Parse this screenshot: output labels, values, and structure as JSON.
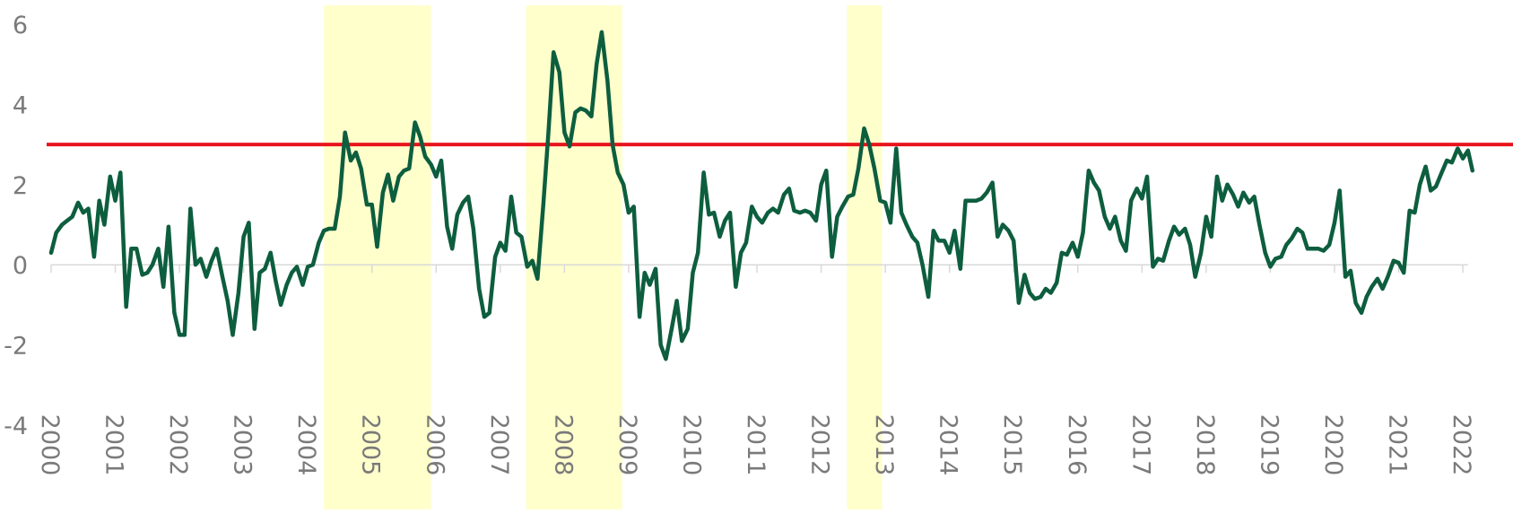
{
  "chart_data": {
    "type": "line",
    "title": "",
    "xlabel": "",
    "ylabel": "",
    "xlim": [
      2000,
      2022.083
    ],
    "ylim": [
      -4,
      6
    ],
    "y_ticks": [
      "-4",
      "-2",
      "0",
      "2",
      "4",
      "6"
    ],
    "x_ticks": [
      "2000",
      "2001",
      "2002",
      "2003",
      "2004",
      "2005",
      "2006",
      "2007",
      "2008",
      "2009",
      "2010",
      "2011",
      "2012",
      "2013",
      "2014",
      "2015",
      "2016",
      "2017",
      "2018",
      "2019",
      "2020",
      "2021",
      "2022"
    ],
    "grid": false,
    "legend": "none",
    "colors": {
      "series": "#0d5e3e",
      "threshold": "#e8141c",
      "shade": "#ffffcc",
      "zero_line": "#d9d9d9"
    },
    "threshold": 3,
    "shaded_periods": [
      [
        2004.25,
        2005.92
      ],
      [
        2007.4,
        2008.9
      ],
      [
        2012.4,
        2012.95
      ]
    ],
    "series": [
      {
        "points": [
          [
            2000.0,
            0.3
          ],
          [
            2000.08,
            0.8
          ],
          [
            2000.17,
            1.0
          ],
          [
            2000.25,
            1.1
          ],
          [
            2000.33,
            1.2
          ],
          [
            2000.42,
            1.55
          ],
          [
            2000.5,
            1.3
          ],
          [
            2000.58,
            1.4
          ],
          [
            2000.67,
            0.2
          ],
          [
            2000.75,
            1.6
          ],
          [
            2000.83,
            1.0
          ],
          [
            2000.92,
            2.2
          ],
          [
            2001.0,
            1.6
          ],
          [
            2001.08,
            2.3
          ],
          [
            2001.17,
            -1.05
          ],
          [
            2001.25,
            0.4
          ],
          [
            2001.33,
            0.4
          ],
          [
            2001.42,
            -0.25
          ],
          [
            2001.5,
            -0.2
          ],
          [
            2001.58,
            0.0
          ],
          [
            2001.67,
            0.4
          ],
          [
            2001.75,
            -0.55
          ],
          [
            2001.83,
            0.95
          ],
          [
            2001.92,
            -1.2
          ],
          [
            2002.0,
            -1.75
          ],
          [
            2002.08,
            -1.75
          ],
          [
            2002.17,
            1.4
          ],
          [
            2002.25,
            0.0
          ],
          [
            2002.33,
            0.15
          ],
          [
            2002.42,
            -0.3
          ],
          [
            2002.5,
            0.1
          ],
          [
            2002.58,
            0.4
          ],
          [
            2002.67,
            -0.3
          ],
          [
            2002.75,
            -0.9
          ],
          [
            2002.83,
            -1.75
          ],
          [
            2002.92,
            -0.7
          ],
          [
            2003.0,
            0.7
          ],
          [
            2003.08,
            1.05
          ],
          [
            2003.17,
            -1.6
          ],
          [
            2003.25,
            -0.2
          ],
          [
            2003.33,
            -0.1
          ],
          [
            2003.42,
            0.3
          ],
          [
            2003.5,
            -0.4
          ],
          [
            2003.58,
            -1.0
          ],
          [
            2003.67,
            -0.5
          ],
          [
            2003.75,
            -0.2
          ],
          [
            2003.83,
            -0.05
          ],
          [
            2003.92,
            -0.5
          ],
          [
            2004.0,
            -0.05
          ],
          [
            2004.08,
            0.0
          ],
          [
            2004.17,
            0.55
          ],
          [
            2004.25,
            0.85
          ],
          [
            2004.33,
            0.9
          ],
          [
            2004.42,
            0.9
          ],
          [
            2004.5,
            1.7
          ],
          [
            2004.58,
            3.3
          ],
          [
            2004.67,
            2.6
          ],
          [
            2004.75,
            2.8
          ],
          [
            2004.83,
            2.4
          ],
          [
            2004.92,
            1.5
          ],
          [
            2005.0,
            1.5
          ],
          [
            2005.08,
            0.45
          ],
          [
            2005.17,
            1.8
          ],
          [
            2005.25,
            2.25
          ],
          [
            2005.33,
            1.6
          ],
          [
            2005.42,
            2.2
          ],
          [
            2005.5,
            2.35
          ],
          [
            2005.58,
            2.4
          ],
          [
            2005.67,
            3.55
          ],
          [
            2005.75,
            3.2
          ],
          [
            2005.83,
            2.7
          ],
          [
            2005.92,
            2.5
          ],
          [
            2006.0,
            2.2
          ],
          [
            2006.08,
            2.6
          ],
          [
            2006.17,
            0.95
          ],
          [
            2006.25,
            0.4
          ],
          [
            2006.33,
            1.25
          ],
          [
            2006.42,
            1.55
          ],
          [
            2006.5,
            1.7
          ],
          [
            2006.58,
            0.9
          ],
          [
            2006.67,
            -0.6
          ],
          [
            2006.75,
            -1.3
          ],
          [
            2006.83,
            -1.2
          ],
          [
            2006.92,
            0.2
          ],
          [
            2007.0,
            0.55
          ],
          [
            2007.08,
            0.35
          ],
          [
            2007.17,
            1.7
          ],
          [
            2007.25,
            0.8
          ],
          [
            2007.33,
            0.7
          ],
          [
            2007.42,
            -0.05
          ],
          [
            2007.5,
            0.1
          ],
          [
            2007.58,
            -0.35
          ],
          [
            2007.67,
            1.5
          ],
          [
            2007.75,
            3.3
          ],
          [
            2007.83,
            5.3
          ],
          [
            2007.92,
            4.8
          ],
          [
            2008.0,
            3.3
          ],
          [
            2008.08,
            2.95
          ],
          [
            2008.17,
            3.8
          ],
          [
            2008.25,
            3.9
          ],
          [
            2008.33,
            3.85
          ],
          [
            2008.42,
            3.7
          ],
          [
            2008.5,
            5.0
          ],
          [
            2008.58,
            5.8
          ],
          [
            2008.67,
            4.6
          ],
          [
            2008.75,
            3.0
          ],
          [
            2008.83,
            2.3
          ],
          [
            2008.92,
            2.0
          ],
          [
            2009.0,
            1.3
          ],
          [
            2009.08,
            1.45
          ],
          [
            2009.17,
            -1.3
          ],
          [
            2009.25,
            -0.2
          ],
          [
            2009.33,
            -0.5
          ],
          [
            2009.42,
            -0.1
          ],
          [
            2009.5,
            -2.0
          ],
          [
            2009.58,
            -2.35
          ],
          [
            2009.67,
            -1.6
          ],
          [
            2009.75,
            -0.9
          ],
          [
            2009.83,
            -1.9
          ],
          [
            2009.92,
            -1.6
          ],
          [
            2010.0,
            -0.2
          ],
          [
            2010.08,
            0.3
          ],
          [
            2010.17,
            2.3
          ],
          [
            2010.25,
            1.25
          ],
          [
            2010.33,
            1.3
          ],
          [
            2010.42,
            0.7
          ],
          [
            2010.5,
            1.1
          ],
          [
            2010.58,
            1.3
          ],
          [
            2010.67,
            -0.55
          ],
          [
            2010.75,
            0.3
          ],
          [
            2010.83,
            0.55
          ],
          [
            2010.92,
            1.45
          ],
          [
            2011.0,
            1.2
          ],
          [
            2011.08,
            1.05
          ],
          [
            2011.17,
            1.3
          ],
          [
            2011.25,
            1.4
          ],
          [
            2011.33,
            1.3
          ],
          [
            2011.42,
            1.75
          ],
          [
            2011.5,
            1.9
          ],
          [
            2011.58,
            1.35
          ],
          [
            2011.67,
            1.3
          ],
          [
            2011.75,
            1.35
          ],
          [
            2011.83,
            1.3
          ],
          [
            2011.92,
            1.1
          ],
          [
            2012.0,
            2.0
          ],
          [
            2012.08,
            2.35
          ],
          [
            2012.17,
            0.2
          ],
          [
            2012.25,
            1.2
          ],
          [
            2012.33,
            1.45
          ],
          [
            2012.42,
            1.7
          ],
          [
            2012.5,
            1.75
          ],
          [
            2012.58,
            2.4
          ],
          [
            2012.67,
            3.4
          ],
          [
            2012.75,
            3.0
          ],
          [
            2012.83,
            2.4
          ],
          [
            2012.92,
            1.6
          ],
          [
            2013.0,
            1.55
          ],
          [
            2013.08,
            1.05
          ],
          [
            2013.17,
            2.9
          ],
          [
            2013.25,
            1.3
          ],
          [
            2013.33,
            1.0
          ],
          [
            2013.42,
            0.7
          ],
          [
            2013.5,
            0.55
          ],
          [
            2013.58,
            0.0
          ],
          [
            2013.67,
            -0.8
          ],
          [
            2013.75,
            0.85
          ],
          [
            2013.83,
            0.6
          ],
          [
            2013.92,
            0.6
          ],
          [
            2014.0,
            0.3
          ],
          [
            2014.08,
            0.85
          ],
          [
            2014.17,
            -0.1
          ],
          [
            2014.25,
            1.6
          ],
          [
            2014.33,
            1.6
          ],
          [
            2014.42,
            1.6
          ],
          [
            2014.5,
            1.65
          ],
          [
            2014.58,
            1.8
          ],
          [
            2014.67,
            2.05
          ],
          [
            2014.75,
            0.7
          ],
          [
            2014.83,
            1.0
          ],
          [
            2014.92,
            0.85
          ],
          [
            2015.0,
            0.6
          ],
          [
            2015.08,
            -0.95
          ],
          [
            2015.17,
            -0.25
          ],
          [
            2015.25,
            -0.7
          ],
          [
            2015.33,
            -0.85
          ],
          [
            2015.42,
            -0.8
          ],
          [
            2015.5,
            -0.6
          ],
          [
            2015.58,
            -0.7
          ],
          [
            2015.67,
            -0.45
          ],
          [
            2015.75,
            0.3
          ],
          [
            2015.83,
            0.25
          ],
          [
            2015.92,
            0.55
          ],
          [
            2016.0,
            0.2
          ],
          [
            2016.08,
            0.8
          ],
          [
            2016.17,
            2.35
          ],
          [
            2016.25,
            2.05
          ],
          [
            2016.33,
            1.85
          ],
          [
            2016.42,
            1.2
          ],
          [
            2016.5,
            0.9
          ],
          [
            2016.58,
            1.2
          ],
          [
            2016.67,
            0.6
          ],
          [
            2016.75,
            0.35
          ],
          [
            2016.83,
            1.6
          ],
          [
            2016.92,
            1.9
          ],
          [
            2017.0,
            1.65
          ],
          [
            2017.08,
            2.2
          ],
          [
            2017.17,
            -0.05
          ],
          [
            2017.25,
            0.15
          ],
          [
            2017.33,
            0.1
          ],
          [
            2017.42,
            0.6
          ],
          [
            2017.5,
            0.95
          ],
          [
            2017.58,
            0.75
          ],
          [
            2017.67,
            0.9
          ],
          [
            2017.75,
            0.5
          ],
          [
            2017.83,
            -0.3
          ],
          [
            2017.92,
            0.3
          ],
          [
            2018.0,
            1.2
          ],
          [
            2018.08,
            0.7
          ],
          [
            2018.17,
            2.2
          ],
          [
            2018.25,
            1.6
          ],
          [
            2018.33,
            2.0
          ],
          [
            2018.42,
            1.75
          ],
          [
            2018.5,
            1.45
          ],
          [
            2018.58,
            1.8
          ],
          [
            2018.67,
            1.55
          ],
          [
            2018.75,
            1.7
          ],
          [
            2018.83,
            1.0
          ],
          [
            2018.92,
            0.3
          ],
          [
            2019.0,
            -0.05
          ],
          [
            2019.08,
            0.15
          ],
          [
            2019.17,
            0.2
          ],
          [
            2019.25,
            0.5
          ],
          [
            2019.33,
            0.65
          ],
          [
            2019.42,
            0.9
          ],
          [
            2019.5,
            0.8
          ],
          [
            2019.58,
            0.4
          ],
          [
            2019.67,
            0.4
          ],
          [
            2019.75,
            0.4
          ],
          [
            2019.83,
            0.35
          ],
          [
            2019.92,
            0.5
          ],
          [
            2020.0,
            1.05
          ],
          [
            2020.08,
            1.85
          ],
          [
            2020.17,
            -0.3
          ],
          [
            2020.25,
            -0.15
          ],
          [
            2020.33,
            -0.95
          ],
          [
            2020.42,
            -1.2
          ],
          [
            2020.5,
            -0.8
          ],
          [
            2020.58,
            -0.55
          ],
          [
            2020.67,
            -0.35
          ],
          [
            2020.75,
            -0.6
          ],
          [
            2020.83,
            -0.3
          ],
          [
            2020.92,
            0.1
          ],
          [
            2021.0,
            0.05
          ],
          [
            2021.08,
            -0.2
          ],
          [
            2021.17,
            1.35
          ],
          [
            2021.25,
            1.3
          ],
          [
            2021.33,
            2.0
          ],
          [
            2021.42,
            2.45
          ],
          [
            2021.5,
            1.85
          ],
          [
            2021.58,
            1.95
          ],
          [
            2021.67,
            2.3
          ],
          [
            2021.75,
            2.6
          ],
          [
            2021.83,
            2.55
          ],
          [
            2021.92,
            2.9
          ],
          [
            2022.0,
            2.65
          ],
          [
            2022.08,
            2.85
          ],
          [
            2022.15,
            2.35
          ]
        ]
      }
    ]
  }
}
